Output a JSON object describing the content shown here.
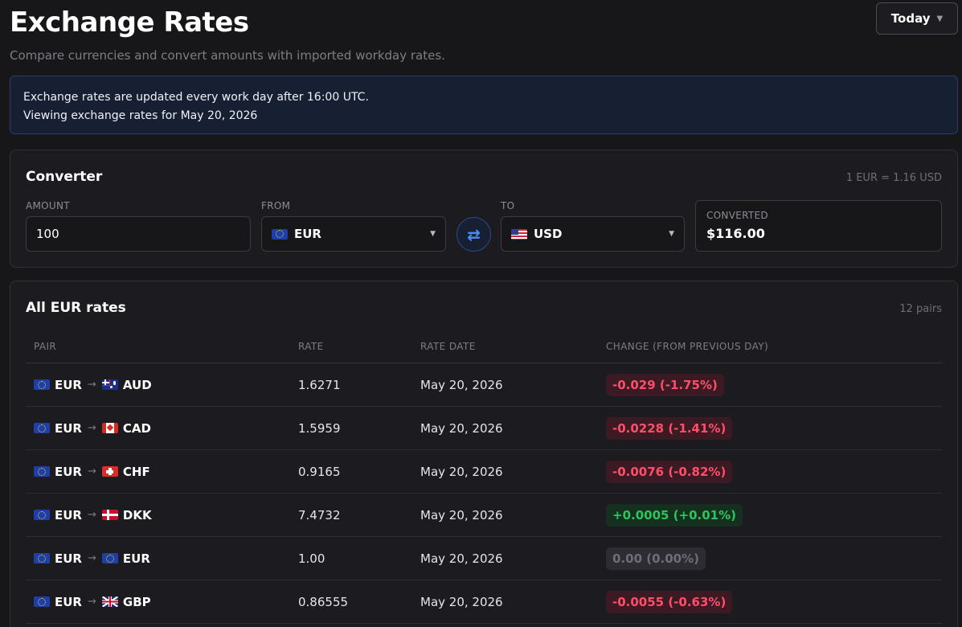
{
  "header": {
    "title": "Exchange Rates",
    "subtitle": "Compare currencies and convert amounts with imported workday rates.",
    "date_button": "Today"
  },
  "info": {
    "line1": "Exchange rates are updated every work day after 16:00 UTC.",
    "line2": "Viewing exchange rates for May 20, 2026"
  },
  "converter": {
    "title": "Converter",
    "rate_hint": "1 EUR = 1.16 USD",
    "amount_label": "AMOUNT",
    "amount_value": "100",
    "from_label": "FROM",
    "from_value": "EUR",
    "to_label": "TO",
    "to_value": "USD",
    "converted_label": "CONVERTED",
    "converted_value": "$116.00"
  },
  "rates": {
    "title": "All EUR rates",
    "count": "12 pairs",
    "columns": {
      "pair": "PAIR",
      "rate": "RATE",
      "date": "RATE DATE",
      "change": "CHANGE (FROM PREVIOUS DAY)"
    },
    "rows": [
      {
        "base": "EUR",
        "quote": "AUD",
        "arrow": "→",
        "rate": "1.6271",
        "date": "May 20, 2026",
        "change": "-0.029 (-1.75%)"
      },
      {
        "base": "EUR",
        "quote": "CAD",
        "arrow": "→",
        "rate": "1.5959",
        "date": "May 20, 2026",
        "change": "-0.0228 (-1.41%)"
      },
      {
        "base": "EUR",
        "quote": "CHF",
        "arrow": "→",
        "rate": "0.9165",
        "date": "May 20, 2026",
        "change": "-0.0076 (-0.82%)"
      },
      {
        "base": "EUR",
        "quote": "DKK",
        "arrow": "→",
        "rate": "7.4732",
        "date": "May 20, 2026",
        "change": "+0.0005 (+0.01%)"
      },
      {
        "base": "EUR",
        "quote": "EUR",
        "arrow": "→",
        "rate": "1.00",
        "date": "May 20, 2026",
        "change": "0.00 (0.00%)"
      },
      {
        "base": "EUR",
        "quote": "GBP",
        "arrow": "→",
        "rate": "0.86555",
        "date": "May 20, 2026",
        "change": "-0.0055 (-0.63%)"
      }
    ]
  },
  "colors": {
    "background": "#17171a",
    "card": "#1c1c20",
    "info_bg": "#172033",
    "accent": "#4a8cf7",
    "negative": "#ff4d6a",
    "positive": "#2fc35d",
    "neutral": "#6e6e78"
  },
  "icons": {
    "swap": "swap-arrows-icon",
    "caret": "chevron-down-icon"
  }
}
